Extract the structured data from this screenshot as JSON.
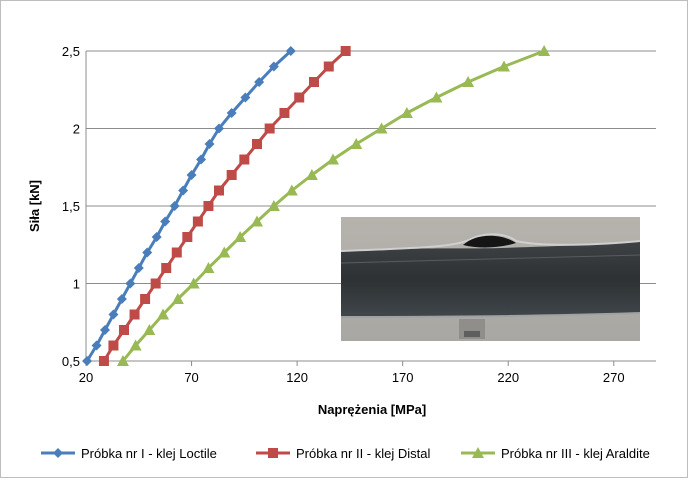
{
  "chart_data": {
    "type": "line",
    "xlabel": "Naprężenia  [MPa]",
    "ylabel": "Siła  [kN]",
    "xlim": [
      20,
      290
    ],
    "ylim": [
      0.5,
      2.5
    ],
    "x_ticks": [
      20,
      70,
      120,
      170,
      220,
      270
    ],
    "x_tick_labels": [
      "20",
      "70",
      "120",
      "170",
      "220",
      "270"
    ],
    "y_ticks": [
      0.5,
      1,
      1.5,
      2,
      2.5
    ],
    "y_tick_labels": [
      "0,5",
      "1",
      "1,5",
      "2",
      "2,5"
    ],
    "grid": "horizontal",
    "legend_position": "bottom",
    "series": [
      {
        "name": "Próbka nr I - klej Loctile",
        "color": "#4a7ebb",
        "marker": "diamond",
        "points": [
          [
            20.5,
            0.5
          ],
          [
            25,
            0.6
          ],
          [
            29,
            0.7
          ],
          [
            33,
            0.8
          ],
          [
            37,
            0.9
          ],
          [
            41,
            1.0
          ],
          [
            45,
            1.1
          ],
          [
            49,
            1.2
          ],
          [
            53.5,
            1.3
          ],
          [
            57.5,
            1.4
          ],
          [
            62,
            1.5
          ],
          [
            66,
            1.6
          ],
          [
            70,
            1.7
          ],
          [
            74.5,
            1.8
          ],
          [
            78.5,
            1.9
          ],
          [
            83,
            2.0
          ],
          [
            89,
            2.1
          ],
          [
            95.5,
            2.2
          ],
          [
            102,
            2.3
          ],
          [
            109,
            2.4
          ],
          [
            117,
            2.5
          ]
        ]
      },
      {
        "name": "Próbka nr II - klej Distal",
        "color": "#be4b48",
        "marker": "square",
        "points": [
          [
            28.5,
            0.5
          ],
          [
            33,
            0.6
          ],
          [
            38,
            0.7
          ],
          [
            43,
            0.8
          ],
          [
            48,
            0.9
          ],
          [
            53,
            1.0
          ],
          [
            58,
            1.1
          ],
          [
            63,
            1.2
          ],
          [
            68,
            1.3
          ],
          [
            73,
            1.4
          ],
          [
            78,
            1.5
          ],
          [
            83,
            1.6
          ],
          [
            89,
            1.7
          ],
          [
            95,
            1.8
          ],
          [
            101,
            1.9
          ],
          [
            107,
            2.0
          ],
          [
            114,
            2.1
          ],
          [
            121,
            2.2
          ],
          [
            128,
            2.3
          ],
          [
            135,
            2.4
          ],
          [
            143,
            2.5
          ]
        ]
      },
      {
        "name": "Próbka nr III - klej Araldite",
        "color": "#98b954",
        "marker": "triangle",
        "points": [
          [
            37.5,
            0.5
          ],
          [
            43.5,
            0.6
          ],
          [
            50,
            0.7
          ],
          [
            56.5,
            0.8
          ],
          [
            63.5,
            0.9
          ],
          [
            71,
            1.0
          ],
          [
            78,
            1.1
          ],
          [
            85.5,
            1.2
          ],
          [
            93,
            1.3
          ],
          [
            101,
            1.4
          ],
          [
            109,
            1.5
          ],
          [
            117.5,
            1.6
          ],
          [
            127,
            1.7
          ],
          [
            137,
            1.8
          ],
          [
            148,
            1.9
          ],
          [
            160,
            2.0
          ],
          [
            172,
            2.1
          ],
          [
            186,
            2.2
          ],
          [
            201,
            2.3
          ],
          [
            218,
            2.4
          ],
          [
            237,
            2.5
          ]
        ]
      }
    ]
  }
}
